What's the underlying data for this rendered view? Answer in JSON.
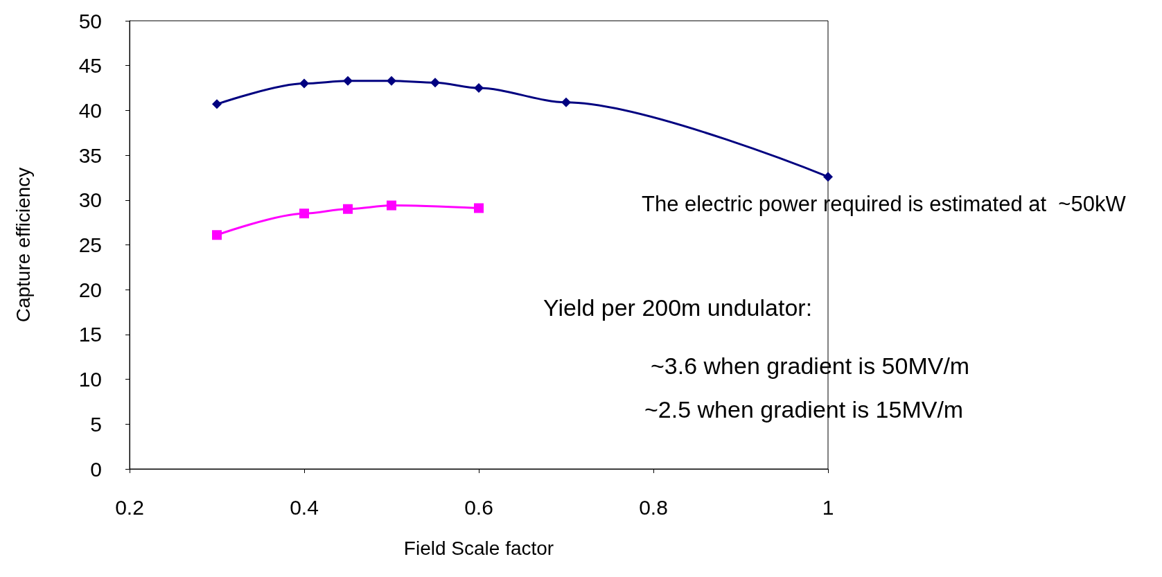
{
  "chart_data": {
    "type": "line",
    "xlabel": "Field Scale factor",
    "ylabel": "Capture efficiency",
    "series": [
      {
        "color": "#000080",
        "marker": "diamond",
        "x": [
          0.3,
          0.4,
          0.45,
          0.5,
          0.55,
          0.6,
          0.7,
          1.0
        ],
        "values": [
          40.7,
          43.0,
          43.3,
          43.3,
          43.1,
          42.5,
          40.9,
          32.6
        ]
      },
      {
        "color": "#ff00ff",
        "marker": "square",
        "x": [
          0.3,
          0.4,
          0.45,
          0.5,
          0.6
        ],
        "values": [
          26.1,
          28.5,
          29.0,
          29.4,
          29.1
        ]
      }
    ],
    "xlim": [
      0.2,
      1
    ],
    "xticks": [
      0.2,
      0.4,
      0.6,
      0.8,
      1
    ],
    "ylim": [
      0,
      50
    ],
    "yticks": [
      0,
      5,
      10,
      15,
      20,
      25,
      30,
      35,
      40,
      45,
      50
    ],
    "grid": false,
    "annotations": [
      "The electric power required is estimated at  ~50kW",
      "Yield per 200m undulator:",
      "~3.6 when gradient is 50MV/m",
      "~2.5 when gradient is 15MV/m"
    ]
  }
}
